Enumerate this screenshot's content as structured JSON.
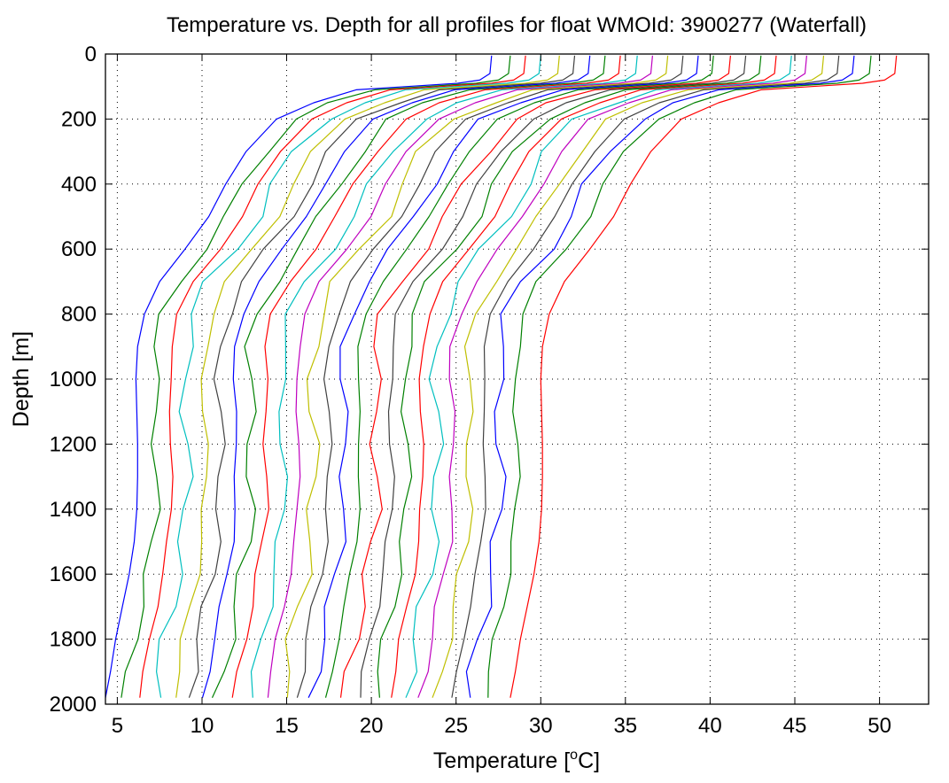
{
  "chart_data": {
    "type": "line",
    "title": "Temperature vs. Depth for all profiles for float WMOId: 3900277 (Waterfall)",
    "xlabel": "Temperature [",
    "xlabel_sup": "o",
    "xlabel_tail": "C]",
    "ylabel": "Depth [m]",
    "xlim": [
      4.3,
      52.9
    ],
    "ylim": [
      0,
      2000
    ],
    "y_reversed": true,
    "grid": true,
    "legend": "none",
    "x_ticks": [
      5,
      10,
      15,
      20,
      25,
      30,
      35,
      40,
      45,
      50
    ],
    "y_ticks": [
      0,
      200,
      400,
      600,
      800,
      1000,
      1200,
      1400,
      1600,
      1800,
      2000
    ],
    "depths": [
      5,
      60,
      80,
      90,
      100,
      110,
      150,
      200,
      300,
      400,
      500,
      600,
      700,
      800,
      900,
      1000,
      1100,
      1200,
      1300,
      1400,
      1500,
      1600,
      1700,
      1800,
      1900,
      1980
    ],
    "base_profile": [
      28.5,
      28.4,
      27.8,
      26.5,
      23.5,
      20.5,
      18.0,
      15.8,
      14.0,
      12.8,
      11.8,
      10.4,
      8.9,
      8.0,
      7.6,
      7.5,
      7.55,
      7.6,
      7.6,
      7.55,
      7.4,
      7.1,
      6.7,
      6.3,
      6.0,
      5.7
    ],
    "series": [
      {
        "color": "#0000ff",
        "offset": -1.4,
        "wiggle": 0.0
      },
      {
        "color": "#008000",
        "offset": -0.3,
        "wiggle": 0.3
      },
      {
        "color": "#ff0000",
        "offset": 0.6,
        "wiggle": 0.1
      },
      {
        "color": "#00bfbf",
        "offset": 1.5,
        "wiggle": 0.4
      },
      {
        "color": "#bfbf00",
        "offset": 2.6,
        "wiggle": 0.2
      },
      {
        "color": "#404040",
        "offset": 3.5,
        "wiggle": 0.3
      },
      {
        "color": "#0000ff",
        "offset": 4.4,
        "wiggle": 0.1
      },
      {
        "color": "#008000",
        "offset": 5.3,
        "wiggle": 0.4
      },
      {
        "color": "#ff0000",
        "offset": 6.2,
        "wiggle": 0.2
      },
      {
        "color": "#00bfbf",
        "offset": 7.2,
        "wiggle": 0.3
      },
      {
        "color": "#bf00bf",
        "offset": 8.1,
        "wiggle": 0.1
      },
      {
        "color": "#bfbf00",
        "offset": 9.0,
        "wiggle": 0.4
      },
      {
        "color": "#404040",
        "offset": 9.9,
        "wiggle": 0.2
      },
      {
        "color": "#0000ff",
        "offset": 10.8,
        "wiggle": 0.3
      },
      {
        "color": "#008000",
        "offset": 11.7,
        "wiggle": 0.1
      },
      {
        "color": "#ff0000",
        "offset": 12.7,
        "wiggle": 0.4
      },
      {
        "color": "#404040",
        "offset": 13.6,
        "wiggle": 0.2
      },
      {
        "color": "#008000",
        "offset": 14.5,
        "wiggle": 0.3
      },
      {
        "color": "#ff0000",
        "offset": 15.4,
        "wiggle": 0.1
      },
      {
        "color": "#00bfbf",
        "offset": 16.3,
        "wiggle": 0.4
      },
      {
        "color": "#bf00bf",
        "offset": 17.2,
        "wiggle": 0.2
      },
      {
        "color": "#bfbf00",
        "offset": 18.2,
        "wiggle": 0.3
      },
      {
        "color": "#404040",
        "offset": 19.1,
        "wiggle": 0.1
      },
      {
        "color": "#0000ff",
        "offset": 20.0,
        "wiggle": 0.4
      },
      {
        "color": "#008000",
        "offset": 21.0,
        "wiggle": 0.2
      },
      {
        "color": "#ff0000",
        "offset": 22.5,
        "wiggle": 0.0
      }
    ]
  }
}
